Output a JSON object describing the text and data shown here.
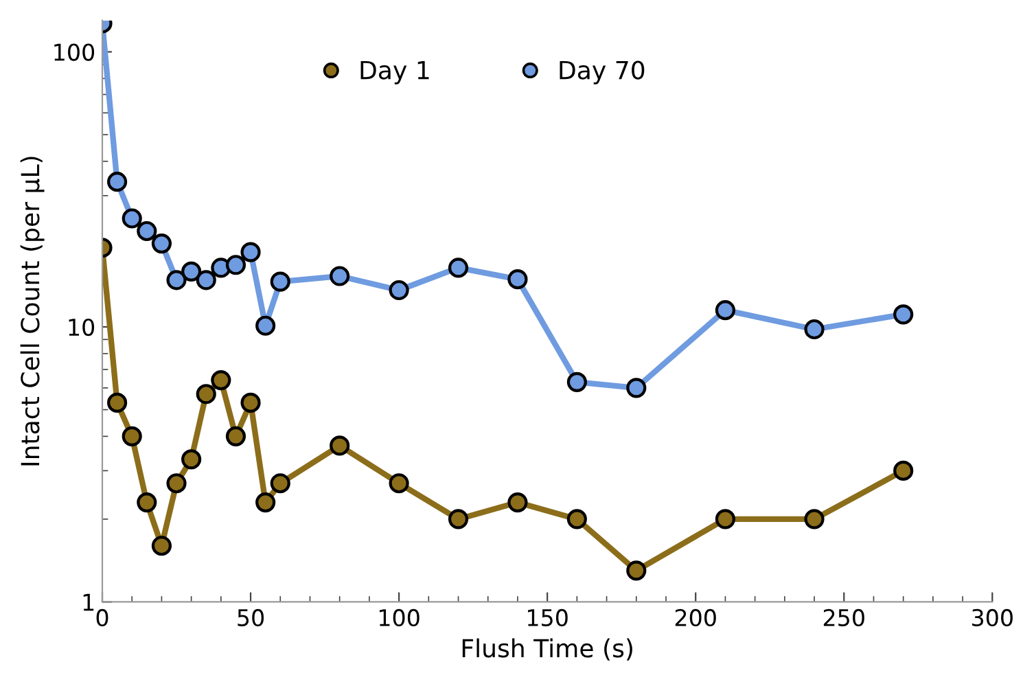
{
  "chart_data": {
    "type": "line",
    "xlabel": "Flush Time (s)",
    "ylabel": "Intact Cell Count (per µL)",
    "x": [
      0,
      5,
      10,
      15,
      20,
      25,
      30,
      35,
      40,
      45,
      50,
      55,
      60,
      80,
      100,
      120,
      140,
      160,
      180,
      210,
      240,
      270
    ],
    "series": [
      {
        "name": "Day 1",
        "color": "#8c6d1a",
        "values": [
          19.4,
          5.3,
          4.0,
          2.3,
          1.6,
          2.7,
          3.3,
          5.7,
          6.4,
          4.0,
          5.3,
          2.3,
          2.7,
          3.7,
          2.7,
          2.0,
          2.3,
          2.0,
          1.3,
          2.0,
          2.0,
          3.0
        ]
      },
      {
        "name": "Day 70",
        "color": "#6f9be0",
        "values": [
          127,
          33.7,
          24.8,
          22.3,
          20.1,
          14.8,
          15.9,
          14.8,
          16.4,
          16.8,
          18.7,
          10.1,
          14.6,
          15.3,
          13.6,
          16.4,
          14.9,
          6.3,
          6.0,
          11.5,
          9.8,
          11.1
        ]
      }
    ],
    "log": "y",
    "xlim": [
      0,
      300
    ],
    "xticks": [
      0,
      50,
      100,
      150,
      200,
      250,
      300
    ],
    "ylim": [
      1,
      130
    ],
    "yticks": [
      1,
      10,
      100
    ],
    "grid": false,
    "legend": "top",
    "marker": "circle",
    "line_style": "solid"
  }
}
